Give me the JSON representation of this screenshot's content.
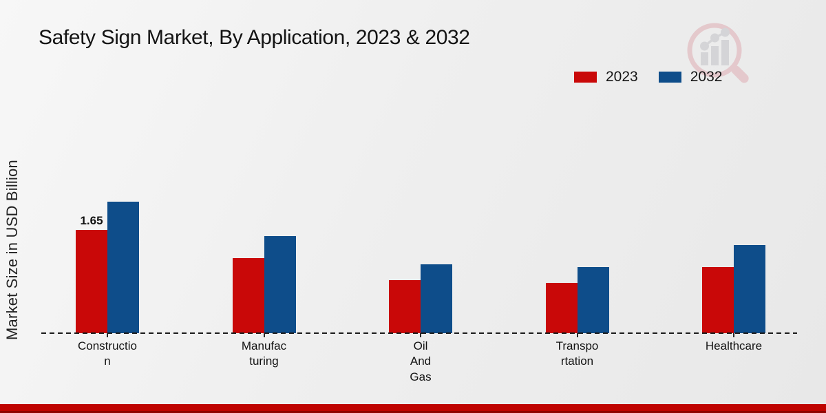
{
  "title": "Safety Sign Market, By Application, 2023 & 2032",
  "ylabel": "Market Size in USD Billion",
  "legend": [
    {
      "label": "2023",
      "color": "#c90808"
    },
    {
      "label": "2032",
      "color": "#0e4d8a"
    }
  ],
  "footer_color": "#bf0300",
  "watermark": "magnifier-bar-chart-logo",
  "chart_data": {
    "type": "bar",
    "title": "Safety Sign Market, By Application, 2023 & 2032",
    "ylabel": "Market Size in USD Billion",
    "xlabel": "",
    "categories": [
      "Construction",
      "Manufacturing",
      "Oil And Gas",
      "Transportation",
      "Healthcare"
    ],
    "category_label_lines": [
      "Constructio\nn",
      "Manufac\nturing",
      "Oil\nAnd\nGas",
      "Transpo\nrtation",
      "Healthcare"
    ],
    "series": [
      {
        "name": "2023",
        "color": "#c90808",
        "values": [
          1.65,
          1.2,
          0.85,
          0.8,
          1.05
        ]
      },
      {
        "name": "2032",
        "color": "#0e4d8a",
        "values": [
          2.1,
          1.55,
          1.1,
          1.05,
          1.4
        ]
      }
    ],
    "annotations": [
      {
        "series": "2023",
        "category": "Construction",
        "text": "1.65"
      }
    ],
    "units": "USD Billion",
    "ylim": [
      0,
      2.5
    ],
    "grid": false,
    "legend_position": "top-right",
    "baseline_style": "dashed",
    "baseline_color": "#1a1a1a"
  }
}
